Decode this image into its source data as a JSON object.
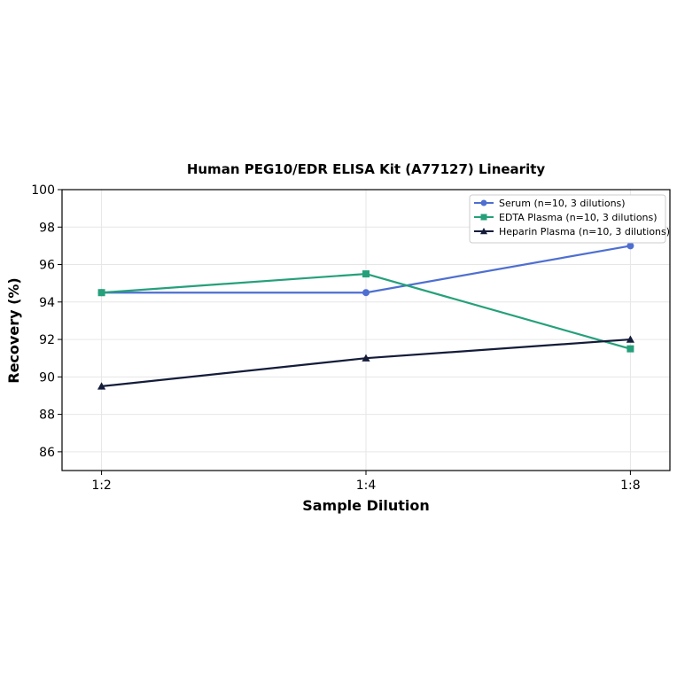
{
  "chart_data": {
    "type": "line",
    "title": "Human PEG10/EDR ELISA Kit (A77127) Linearity",
    "xlabel": "Sample Dilution",
    "ylabel": "Recovery (%)",
    "categories": [
      "1:2",
      "1:4",
      "1:8"
    ],
    "ylim": [
      85,
      100
    ],
    "yticks": [
      86,
      88,
      90,
      92,
      94,
      96,
      98,
      100
    ],
    "grid": true,
    "legend_position": "top-right",
    "series": [
      {
        "name": "Serum (n=10, 3 dilutions)",
        "values": [
          94.5,
          94.5,
          97.0
        ],
        "color": "#4e6fd1",
        "marker": "circle"
      },
      {
        "name": "EDTA Plasma (n=10, 3 dilutions)",
        "values": [
          94.5,
          95.5,
          91.5
        ],
        "color": "#25a07a",
        "marker": "square"
      },
      {
        "name": "Heparin Plasma (n=10, 3 dilutions)",
        "values": [
          89.5,
          91.0,
          92.0
        ],
        "color": "#141c3a",
        "marker": "triangle"
      }
    ]
  }
}
